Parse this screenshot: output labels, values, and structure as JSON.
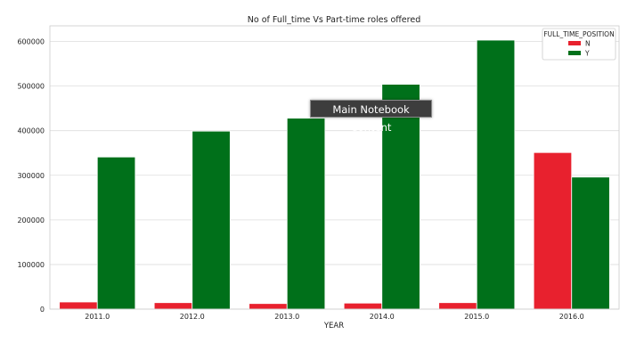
{
  "chart_data": {
    "type": "bar",
    "title": "No of Full_time Vs Part-time roles offered",
    "xlabel": "YEAR",
    "ylabel": "",
    "categories": [
      "2011.0",
      "2012.0",
      "2013.0",
      "2014.0",
      "2015.0",
      "2016.0"
    ],
    "series": [
      {
        "name": "N",
        "color": "#e8212e",
        "values": [
          16000,
          14500,
          12500,
          13500,
          14500,
          351000
        ]
      },
      {
        "name": "Y",
        "color": "#00701a",
        "values": [
          341000,
          399000,
          428000,
          504000,
          603000,
          296000
        ]
      }
    ],
    "ylim": [
      0,
      635000
    ],
    "yticks": [
      0,
      100000,
      200000,
      300000,
      400000,
      500000,
      600000
    ],
    "ytick_labels": [
      "0",
      "100000",
      "200000",
      "300000",
      "400000",
      "500000",
      "600000"
    ],
    "grid": true,
    "legend": {
      "title": "FULL_TIME_POSITION",
      "placement": "top-right"
    }
  },
  "tooltip": {
    "text": "Main Notebook Content"
  }
}
